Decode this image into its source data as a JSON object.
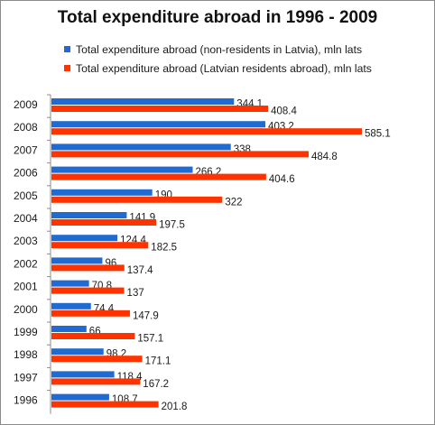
{
  "chart_data": {
    "type": "bar",
    "orientation": "horizontal",
    "title": "Total expenditure abroad in 1996 - 2009",
    "categories": [
      "2009",
      "2008",
      "2007",
      "2006",
      "2005",
      "2004",
      "2003",
      "2002",
      "2001",
      "2000",
      "1999",
      "1998",
      "1997",
      "1996"
    ],
    "series": [
      {
        "name": "Total expenditure abroad (non-residents in Latvia), mln lats",
        "color": "#1f6bd1",
        "values": [
          344.1,
          403.2,
          338,
          266.2,
          190,
          141.9,
          124.4,
          96,
          70.8,
          74.4,
          66,
          98.2,
          118.4,
          108.7
        ]
      },
      {
        "name": "Total expenditure abroad (Latvian residents abroad), mln lats",
        "color": "#ff3300",
        "values": [
          408.4,
          585.1,
          484.8,
          404.6,
          322,
          197.5,
          182.5,
          137.4,
          137,
          147.9,
          157.1,
          171.1,
          167.2,
          201.8
        ]
      }
    ],
    "xlabel": "",
    "ylabel": "",
    "xlim": [
      0,
      600
    ],
    "grid": false,
    "legend_position": "top"
  }
}
